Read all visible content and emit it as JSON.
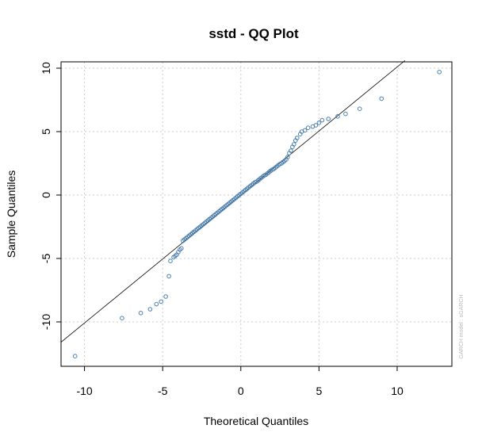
{
  "chart_data": {
    "type": "scatter",
    "title": "sstd - QQ Plot",
    "xlabel": "Theoretical Quantiles",
    "ylabel": "Sample Quantiles",
    "xlim": [
      -11.5,
      13.5
    ],
    "ylim": [
      -13.5,
      10.5
    ],
    "xticks": [
      -10,
      -5,
      0,
      5,
      10
    ],
    "yticks": [
      -10,
      -5,
      0,
      5,
      10
    ],
    "grid": true,
    "reference_line": {
      "x": [
        -11.5,
        10.5
      ],
      "y": [
        -11.6,
        10.6
      ]
    },
    "point_color": "#4a7fb0",
    "watermark": "GARCH model : sGARCH",
    "series": [
      {
        "x": [
          -10.6,
          -7.6,
          -6.4,
          -5.8,
          -5.4,
          -5.1,
          -4.8,
          -4.6,
          -4.5,
          -4.3,
          -4.2,
          -4.1,
          -4.0,
          -3.9,
          -3.8,
          -3.7,
          -3.6,
          -3.5,
          -3.4,
          -3.3,
          -3.2,
          -3.1,
          -3.0,
          -2.9,
          -2.8,
          -2.7,
          -2.6,
          -2.5,
          -2.4,
          -2.3,
          -2.2,
          -2.1,
          -2.0,
          -1.9,
          -1.8,
          -1.7,
          -1.6,
          -1.5,
          -1.4,
          -1.3,
          -1.2,
          -1.1,
          -1.0,
          -0.9,
          -0.8,
          -0.7,
          -0.6,
          -0.5,
          -0.4,
          -0.3,
          -0.2,
          -0.1,
          0.0,
          0.1,
          0.2,
          0.3,
          0.4,
          0.5,
          0.6,
          0.7,
          0.8,
          0.9,
          1.0,
          1.1,
          1.2,
          1.3,
          1.4,
          1.5,
          1.6,
          1.7,
          1.8,
          1.9,
          2.0,
          2.1,
          2.2,
          2.3,
          2.4,
          2.5,
          2.6,
          2.7,
          2.8,
          2.9,
          3.0,
          3.1,
          3.2,
          3.3,
          3.4,
          3.5,
          3.6,
          3.8,
          3.9,
          4.1,
          4.3,
          4.6,
          4.8,
          5.0,
          5.2,
          5.6,
          6.2,
          6.7,
          7.6,
          9.0,
          12.7
        ],
        "y": [
          -12.7,
          -9.7,
          -9.3,
          -9.0,
          -8.6,
          -8.4,
          -8.0,
          -6.4,
          -5.2,
          -4.9,
          -4.8,
          -4.7,
          -4.5,
          -4.3,
          -4.2,
          -3.6,
          -3.5,
          -3.4,
          -3.3,
          -3.2,
          -3.1,
          -3.0,
          -2.9,
          -2.8,
          -2.7,
          -2.6,
          -2.5,
          -2.4,
          -2.3,
          -2.2,
          -2.1,
          -2.0,
          -1.9,
          -1.8,
          -1.7,
          -1.6,
          -1.5,
          -1.4,
          -1.3,
          -1.2,
          -1.1,
          -1.0,
          -0.9,
          -0.8,
          -0.7,
          -0.6,
          -0.5,
          -0.4,
          -0.3,
          -0.2,
          -0.1,
          0.0,
          0.1,
          0.2,
          0.3,
          0.4,
          0.5,
          0.6,
          0.7,
          0.8,
          0.9,
          1.0,
          1.05,
          1.15,
          1.25,
          1.35,
          1.45,
          1.55,
          1.6,
          1.7,
          1.8,
          1.9,
          2.0,
          2.05,
          2.15,
          2.25,
          2.35,
          2.45,
          2.5,
          2.6,
          2.7,
          2.8,
          3.0,
          3.3,
          3.5,
          3.8,
          4.0,
          4.3,
          4.5,
          4.8,
          5.0,
          5.1,
          5.3,
          5.4,
          5.5,
          5.7,
          5.9,
          6.0,
          6.2,
          6.4,
          6.8,
          7.6,
          9.7
        ]
      }
    ]
  }
}
